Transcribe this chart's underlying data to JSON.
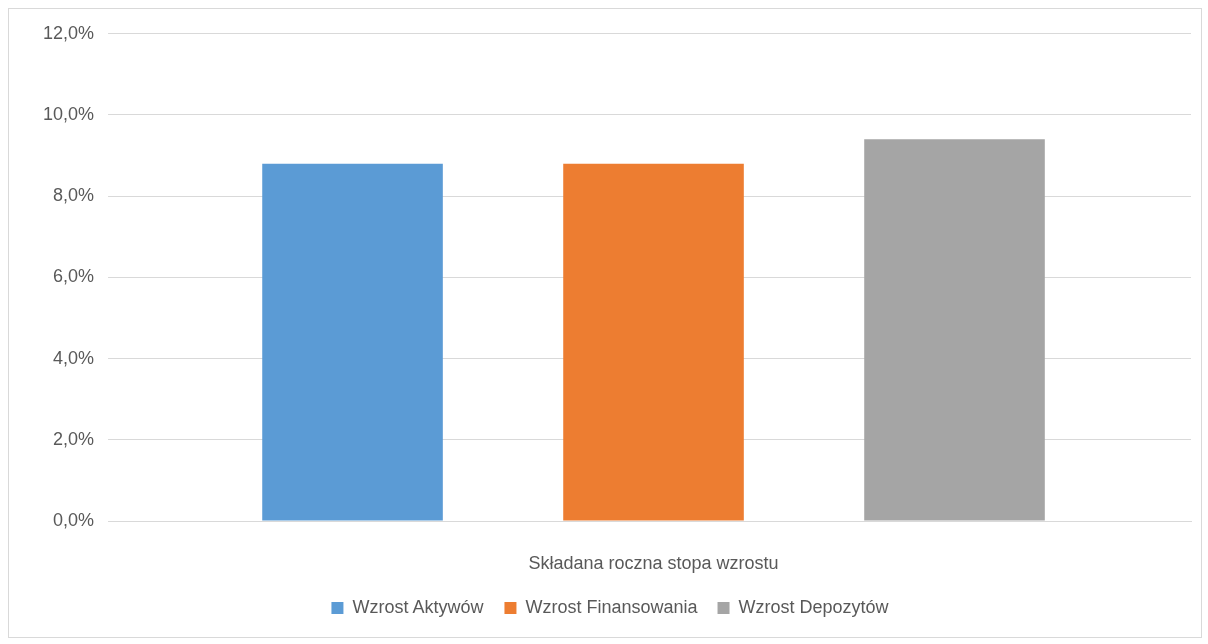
{
  "chart_data": {
    "type": "bar",
    "xlabel": "Składana roczna stopa wzrostu",
    "categories": [
      null
    ],
    "series": [
      {
        "name": "Wzrost Aktywów",
        "color": "#5b9bd5",
        "values": [
          8.8
        ]
      },
      {
        "name": "Wzrost Finansowania",
        "color": "#ed7d31",
        "values": [
          8.8
        ]
      },
      {
        "name": "Wzrost Depozytów",
        "color": "#a5a5a5",
        "values": [
          9.4
        ]
      }
    ],
    "ylim": [
      0,
      12
    ],
    "yticks": [
      {
        "value": 0,
        "label": "0,0%"
      },
      {
        "value": 2,
        "label": "2,0%"
      },
      {
        "value": 4,
        "label": "4,0%"
      },
      {
        "value": 6,
        "label": "6,0%"
      },
      {
        "value": 8,
        "label": "8,0%"
      },
      {
        "value": 10,
        "label": "10,0%"
      },
      {
        "value": 12,
        "label": "12,0%"
      }
    ],
    "grid": "y",
    "legend": "bottom"
  }
}
